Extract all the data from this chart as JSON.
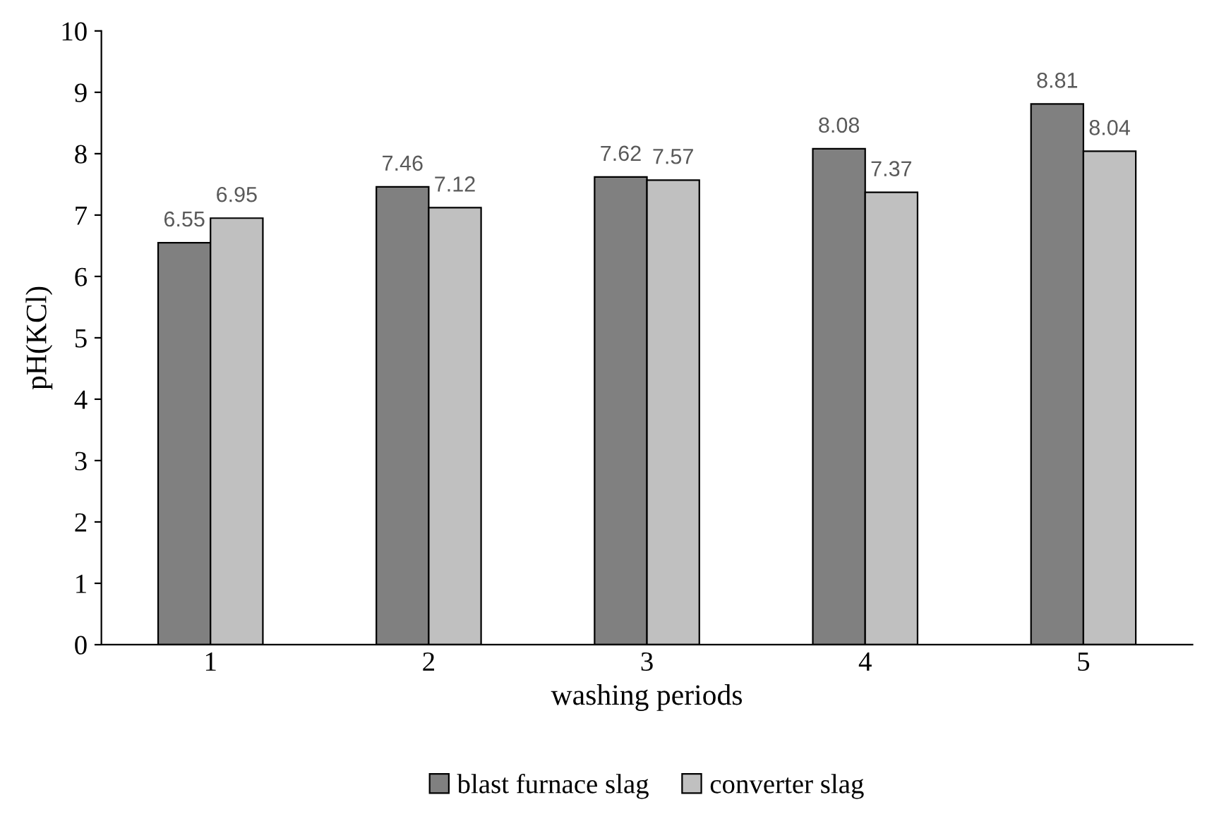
{
  "chart_data": {
    "type": "bar",
    "xlabel": "washing periods",
    "ylabel": "pH(KCl)",
    "categories": [
      "1",
      "2",
      "3",
      "4",
      "5"
    ],
    "series": [
      {
        "name": "blast furnace slag",
        "color": "#808080",
        "values": [
          6.55,
          7.46,
          7.62,
          8.08,
          8.81
        ]
      },
      {
        "name": "converter slag",
        "color": "#c0c0c0",
        "values": [
          6.95,
          7.12,
          7.57,
          7.37,
          8.04
        ]
      }
    ],
    "ylim": [
      0,
      10
    ],
    "yticks": [
      0,
      1,
      2,
      3,
      4,
      5,
      6,
      7,
      8,
      9,
      10
    ],
    "grid": false,
    "legend": "bottom",
    "data_labels": true
  }
}
